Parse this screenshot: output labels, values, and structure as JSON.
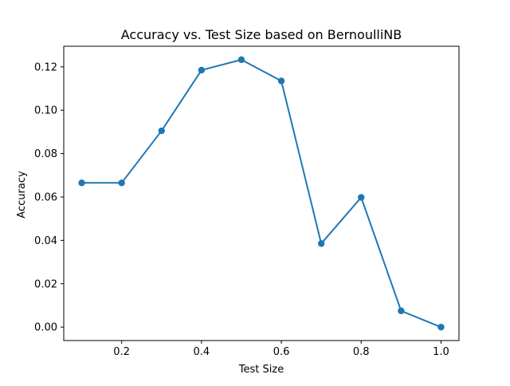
{
  "chart_data": {
    "type": "line",
    "title": "Accuracy vs. Test Size based on BernoulliNB",
    "xlabel": "Test Size",
    "ylabel": "Accuracy",
    "x": [
      0.1,
      0.2,
      0.3,
      0.4,
      0.5,
      0.6,
      0.7,
      0.8,
      0.9,
      1.0
    ],
    "series": [
      {
        "values": [
          0.0665,
          0.0665,
          0.0905,
          0.1185,
          0.1233,
          0.1135,
          0.0385,
          0.0598,
          0.0075,
          0.0
        ],
        "color": "#1f77b4",
        "marker": "circle"
      }
    ],
    "xlim": [
      0.055,
      1.045
    ],
    "ylim": [
      -0.0062,
      0.1295
    ],
    "xticks": [
      "0.2",
      "0.4",
      "0.6",
      "0.8",
      "1.0"
    ],
    "yticks": [
      "0.00",
      "0.02",
      "0.04",
      "0.06",
      "0.08",
      "0.10",
      "0.12"
    ],
    "grid": false,
    "legend": "none"
  }
}
